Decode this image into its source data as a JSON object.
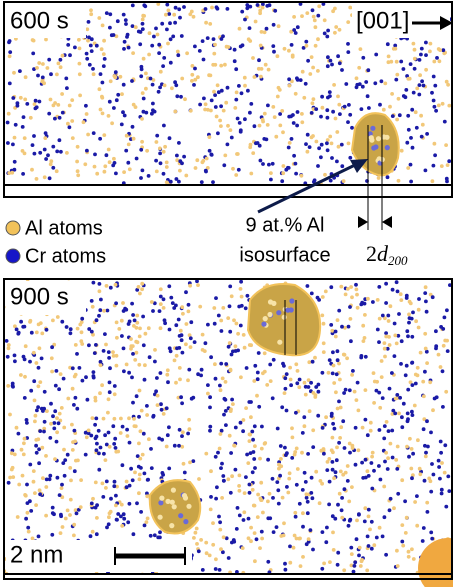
{
  "panels": [
    {
      "label": "600 s"
    },
    {
      "label": "900 s"
    }
  ],
  "direction": "[001]",
  "legend": [
    {
      "label": "Al atoms"
    },
    {
      "label": "Cr atoms"
    }
  ],
  "annotation": {
    "line1": "9 at.% Al",
    "line2": "isosurface"
  },
  "spacing": {
    "prefix": "2",
    "symbol": "d",
    "subscript": "200"
  },
  "scale_bar": "2 nm"
}
